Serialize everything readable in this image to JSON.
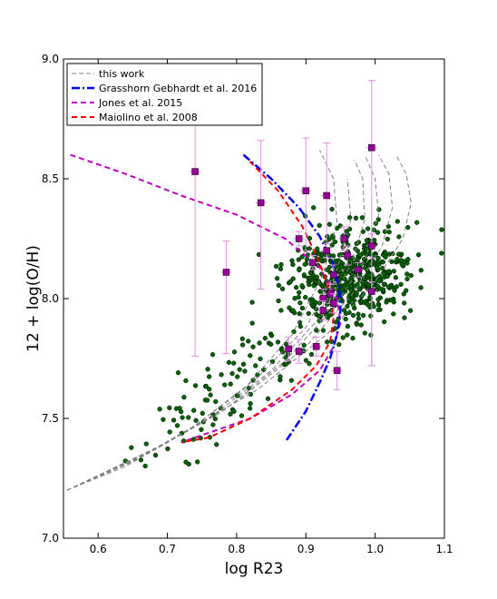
{
  "chart_data": {
    "type": "scatter",
    "title": "",
    "xlabel": "log R23",
    "ylabel": "12 + log(O/H)",
    "xlim": [
      0.55,
      1.1
    ],
    "ylim": [
      7.0,
      9.0
    ],
    "xticks": [
      "0.6",
      "0.7",
      "0.8",
      "0.9",
      "1.0",
      "1.1"
    ],
    "yticks": [
      "7.0",
      "7.5",
      "8.0",
      "8.5",
      "9.0"
    ],
    "grid": false,
    "legend": {
      "placement": "top-left",
      "entries": [
        {
          "label": "this work",
          "color": "#808080",
          "style": "dashed"
        },
        {
          "label": "Grasshorn Gebhardt et al. 2016",
          "color": "#0000ff",
          "style": "dashdot"
        },
        {
          "label": "Jones et al. 2015",
          "color": "#bf00bf",
          "style": "dashed"
        },
        {
          "label": "Maiolino et al. 2008",
          "color": "#ff0000",
          "style": "dashed"
        }
      ]
    },
    "colors": {
      "points": "#006400",
      "squares": "#990099",
      "errorbars": "#e08ee0"
    },
    "calibrations": {
      "this_work": [
        {
          "name": "",
          "points": [
            [
              0.555,
              7.2
            ],
            [
              0.64,
              7.3
            ],
            [
              0.73,
              7.45
            ],
            [
              0.81,
              7.62
            ],
            [
              0.88,
              7.85
            ],
            [
              0.925,
              8.1
            ],
            [
              0.945,
              8.32
            ],
            [
              0.94,
              8.5
            ],
            [
              0.92,
              8.62
            ]
          ]
        },
        {
          "name": "",
          "points": [
            [
              0.555,
              7.2
            ],
            [
              0.65,
              7.32
            ],
            [
              0.74,
              7.47
            ],
            [
              0.83,
              7.67
            ],
            [
              0.9,
              7.88
            ],
            [
              0.945,
              8.12
            ],
            [
              0.965,
              8.33
            ],
            [
              0.96,
              8.5
            ]
          ]
        },
        {
          "name": "",
          "points": [
            [
              0.555,
              7.2
            ],
            [
              0.66,
              7.34
            ],
            [
              0.76,
              7.5
            ],
            [
              0.85,
              7.7
            ],
            [
              0.92,
              7.92
            ],
            [
              0.965,
              8.14
            ],
            [
              0.985,
              8.33
            ],
            [
              0.982,
              8.5
            ],
            [
              0.97,
              8.58
            ]
          ]
        },
        {
          "name": "",
          "points": [
            [
              0.555,
              7.2
            ],
            [
              0.67,
              7.35
            ],
            [
              0.78,
              7.53
            ],
            [
              0.87,
              7.74
            ],
            [
              0.94,
              7.96
            ],
            [
              0.985,
              8.16
            ],
            [
              1.005,
              8.35
            ],
            [
              1.0,
              8.5
            ],
            [
              0.985,
              8.6
            ]
          ]
        },
        {
          "name": "",
          "points": [
            [
              0.555,
              7.2
            ],
            [
              0.68,
              7.37
            ],
            [
              0.8,
              7.57
            ],
            [
              0.9,
              7.8
            ],
            [
              0.97,
              8.03
            ],
            [
              1.01,
              8.22
            ],
            [
              1.025,
              8.38
            ],
            [
              1.02,
              8.52
            ],
            [
              1.005,
              8.6
            ]
          ]
        },
        {
          "name": "",
          "points": [
            [
              0.555,
              7.2
            ],
            [
              0.7,
              7.4
            ],
            [
              0.83,
              7.62
            ],
            [
              0.93,
              7.85
            ],
            [
              1.0,
              8.07
            ],
            [
              1.04,
              8.25
            ],
            [
              1.052,
              8.4
            ],
            [
              1.045,
              8.52
            ],
            [
              1.03,
              8.6
            ]
          ]
        }
      ],
      "grasshorn_gebhardt_2016": [
        [
          0.81,
          8.6
        ],
        [
          0.85,
          8.5
        ],
        [
          0.89,
          8.38
        ],
        [
          0.92,
          8.26
        ],
        [
          0.938,
          8.15
        ],
        [
          0.948,
          8.05
        ],
        [
          0.95,
          7.95
        ],
        [
          0.945,
          7.85
        ],
        [
          0.935,
          7.75
        ],
        [
          0.92,
          7.65
        ],
        [
          0.9,
          7.53
        ],
        [
          0.87,
          7.4
        ]
      ],
      "jones_2015": [
        [
          0.56,
          8.6
        ],
        [
          0.64,
          8.52
        ],
        [
          0.72,
          8.43
        ],
        [
          0.8,
          8.35
        ],
        [
          0.87,
          8.25
        ],
        [
          0.92,
          8.13
        ],
        [
          0.945,
          8.0
        ],
        [
          0.95,
          7.9
        ],
        [
          0.94,
          7.8
        ],
        [
          0.92,
          7.7
        ],
        [
          0.88,
          7.6
        ],
        [
          0.82,
          7.5
        ],
        [
          0.72,
          7.4
        ]
      ],
      "maiolino_2008": [
        [
          0.81,
          8.6
        ],
        [
          0.86,
          8.45
        ],
        [
          0.895,
          8.3
        ],
        [
          0.92,
          8.15
        ],
        [
          0.935,
          8.02
        ],
        [
          0.94,
          7.92
        ],
        [
          0.935,
          7.82
        ],
        [
          0.915,
          7.72
        ],
        [
          0.88,
          7.62
        ],
        [
          0.82,
          7.5
        ],
        [
          0.76,
          7.42
        ],
        [
          0.72,
          7.4
        ]
      ]
    },
    "binned_points": [
      {
        "x": 0.74,
        "y": 8.53,
        "yerr": [
          0.77,
          0.26
        ]
      },
      {
        "x": 0.785,
        "y": 8.11,
        "yerr": [
          0.34,
          0.13
        ]
      },
      {
        "x": 0.835,
        "y": 8.4,
        "yerr": [
          0.36,
          0.26
        ]
      },
      {
        "x": 0.89,
        "y": 8.25,
        "yerr": [
          0.03,
          0.03
        ]
      },
      {
        "x": 0.9,
        "y": 8.45,
        "yerr": [
          0.25,
          0.22
        ]
      },
      {
        "x": 0.93,
        "y": 8.43,
        "yerr": [
          0.24,
          0.22
        ]
      },
      {
        "x": 0.955,
        "y": 8.25,
        "yerr": [
          0.05,
          0.05
        ]
      },
      {
        "x": 0.995,
        "y": 8.63,
        "yerr": [
          0.91,
          0.28
        ]
      },
      {
        "x": 0.975,
        "y": 8.12,
        "yerr": [
          0.03,
          0.03
        ]
      },
      {
        "x": 0.995,
        "y": 8.03,
        "yerr": [
          0.31,
          0.04
        ]
      },
      {
        "x": 0.995,
        "y": 8.22,
        "yerr": [
          0.05,
          0.05
        ]
      },
      {
        "x": 0.96,
        "y": 8.18,
        "yerr": [
          0.04,
          0.04
        ]
      },
      {
        "x": 0.94,
        "y": 8.1,
        "yerr": [
          0.04,
          0.04
        ]
      },
      {
        "x": 0.925,
        "y": 8.0,
        "yerr": [
          0.04,
          0.04
        ]
      },
      {
        "x": 0.935,
        "y": 8.02,
        "yerr": [
          0.04,
          0.04
        ]
      },
      {
        "x": 0.925,
        "y": 7.95,
        "yerr": [
          0.04,
          0.04
        ]
      },
      {
        "x": 0.94,
        "y": 7.98,
        "yerr": [
          0.04,
          0.04
        ]
      },
      {
        "x": 0.91,
        "y": 8.15,
        "yerr": [
          0.03,
          0.03
        ]
      },
      {
        "x": 0.93,
        "y": 8.2,
        "yerr": [
          0.03,
          0.03
        ]
      },
      {
        "x": 0.915,
        "y": 7.8,
        "yerr": [
          0.04,
          0.04
        ]
      },
      {
        "x": 0.89,
        "y": 7.78,
        "yerr": [
          0.05,
          0.05
        ]
      },
      {
        "x": 0.875,
        "y": 7.79,
        "yerr": [
          0.05,
          0.05
        ]
      },
      {
        "x": 0.945,
        "y": 7.7,
        "yerr": [
          0.08,
          0.08
        ]
      }
    ],
    "galaxies": {
      "count": 650,
      "seed": 20231,
      "distribution": "scatter of green points, densest near log R23 0.9–1.0 and 12 + log(O/H) 8.0–8.2, extending down-left to 7.3 at log R23 0.65"
    }
  }
}
